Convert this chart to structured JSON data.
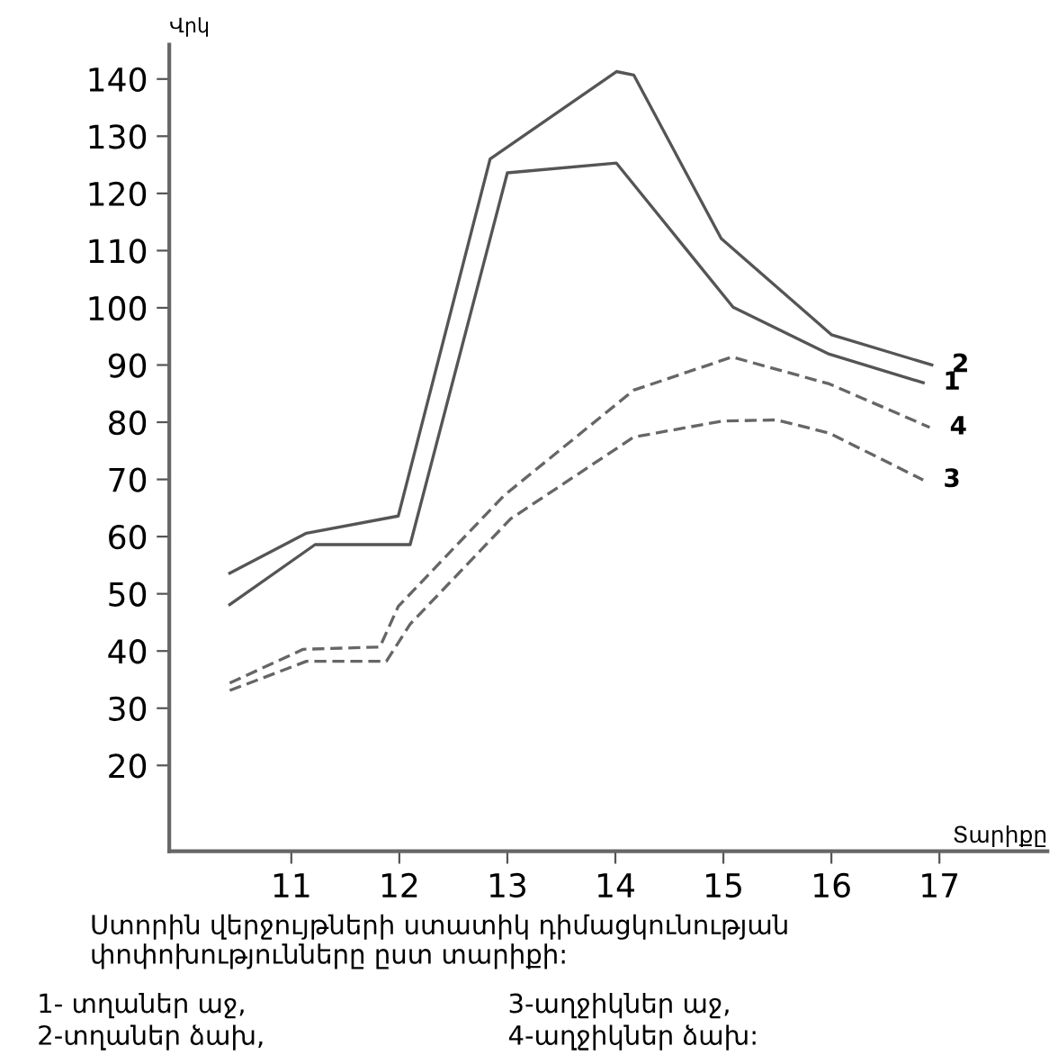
{
  "chart_data": {
    "type": "line",
    "xlabel": "Տարիքը",
    "ylabel": "Վրկ",
    "xlim": [
      9.87,
      18
    ],
    "ylim": [
      5,
      146
    ],
    "xticks": [
      11,
      12,
      13,
      14,
      15,
      16,
      17
    ],
    "yticks": [
      20,
      30,
      40,
      50,
      60,
      70,
      80,
      90,
      100,
      110,
      120,
      130,
      140
    ],
    "grid": false,
    "legend": false,
    "marker": "none",
    "series": [
      {
        "name": "1",
        "color": "#555555",
        "line_style": "solid",
        "x": [
          10.43,
          11.22,
          12.1,
          13.0,
          14.01,
          15.09,
          15.98,
          16.85
        ],
        "values": [
          48.1,
          58.6,
          58.6,
          123.6,
          125.3,
          100.1,
          91.9,
          86.9
        ]
      },
      {
        "name": "2",
        "color": "#555555",
        "line_style": "solid",
        "x": [
          10.43,
          11.14,
          11.99,
          12.84,
          14.01,
          14.17,
          14.98,
          16.0,
          16.93
        ],
        "values": [
          53.6,
          60.6,
          63.6,
          126.0,
          141.3,
          140.7,
          112.1,
          95.3,
          90.0
        ]
      },
      {
        "name": "3",
        "color": "#666666",
        "line_style": "dashed",
        "x": [
          10.43,
          11.14,
          11.88,
          12.1,
          13.03,
          14.17,
          14.99,
          15.49,
          15.98,
          16.85
        ],
        "values": [
          33.1,
          38.2,
          38.2,
          44.7,
          63.1,
          77.4,
          80.2,
          80.4,
          78.1,
          69.9
        ]
      },
      {
        "name": "4",
        "color": "#666666",
        "line_style": "dashed",
        "x": [
          10.43,
          11.11,
          11.82,
          11.99,
          12.97,
          14.17,
          15.08,
          15.98,
          16.91
        ],
        "values": [
          34.4,
          40.3,
          40.7,
          47.8,
          67.2,
          85.6,
          91.4,
          86.7,
          79.1
        ]
      }
    ],
    "annotations": [
      "Ստորին վերջույթների ստատիկ դիմացկունության փոփոխությունները ըստ տարիքի:",
      "1- տղաներ աջ,",
      "2-տղաներ ձախ,",
      "3-աղջիկներ աջ,",
      "4-աղջիկներ ձախ:"
    ]
  }
}
